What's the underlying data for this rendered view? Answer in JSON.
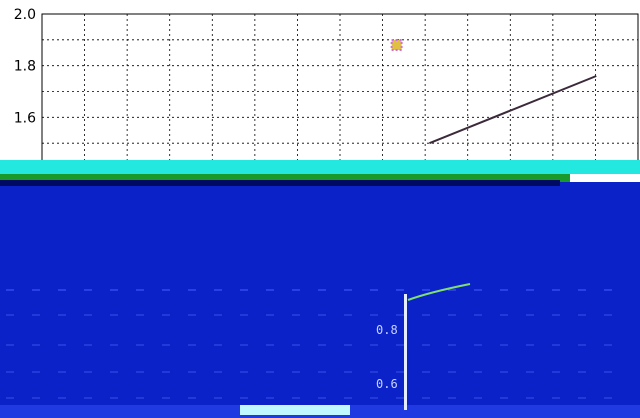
{
  "chart_data": {
    "type": "line",
    "title": "",
    "xlabel": "",
    "ylabel": "",
    "ylim": [
      1.4,
      2.0
    ],
    "yticks": [
      "2.0",
      "1.8",
      "1.6"
    ],
    "grid": true,
    "series": [
      {
        "values": [
          [
            0.65,
            1.5
          ],
          [
            0.93,
            1.76
          ]
        ]
      }
    ],
    "scatter": [
      [
        0.595,
        1.88
      ]
    ],
    "inset_ticks": [
      "0.8",
      "0.6"
    ]
  },
  "colors": {
    "line": "#3a2a3a",
    "glitch_band": "#0a22c8",
    "glitch_cyan": "#22e8e0",
    "glitch_green": "#1a9a2a",
    "inset_line": "#7fe070"
  }
}
